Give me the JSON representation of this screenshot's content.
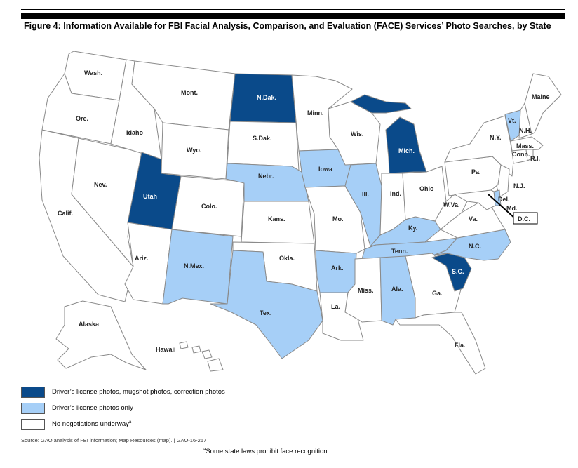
{
  "figure": {
    "title": "Figure 4: Information Available for FBI Facial Analysis, Comparison, and Evaluation (FACE) Services’ Photo Searches, by State",
    "source": "Source: GAO analysis of FBI information; Map Resources (map).  |  GAO-16-267",
    "note_marker": "a",
    "note": "Some state laws prohibit face recognition."
  },
  "colors": {
    "full": "#0a4a8a",
    "license": "#a6cff7",
    "none": "#ffffff"
  },
  "legend": [
    {
      "category": "full",
      "label": "Driver’s license photos, mugshot photos, correction photos",
      "sup": ""
    },
    {
      "category": "license",
      "label": "Driver’s license photos only",
      "sup": ""
    },
    {
      "category": "none",
      "label": "No negotiations underway",
      "sup": "a"
    }
  ],
  "states": {
    "wa": {
      "label": "Wash.",
      "category": "none"
    },
    "or": {
      "label": "Ore.",
      "category": "none"
    },
    "ca": {
      "label": "Calif.",
      "category": "none"
    },
    "nv": {
      "label": "Nev.",
      "category": "none"
    },
    "id": {
      "label": "Idaho",
      "category": "none"
    },
    "mt": {
      "label": "Mont.",
      "category": "none"
    },
    "wy": {
      "label": "Wyo.",
      "category": "none"
    },
    "ut": {
      "label": "Utah",
      "category": "full"
    },
    "az": {
      "label": "Ariz.",
      "category": "none"
    },
    "co": {
      "label": "Colo.",
      "category": "none"
    },
    "nm": {
      "label": "N.Mex.",
      "category": "license"
    },
    "nd": {
      "label": "N.Dak.",
      "category": "full"
    },
    "sd": {
      "label": "S.Dak.",
      "category": "none"
    },
    "ne": {
      "label": "Nebr.",
      "category": "license"
    },
    "ks": {
      "label": "Kans.",
      "category": "none"
    },
    "ok": {
      "label": "Okla.",
      "category": "none"
    },
    "tx": {
      "label": "Tex.",
      "category": "license"
    },
    "mn": {
      "label": "Minn.",
      "category": "none"
    },
    "ia": {
      "label": "Iowa",
      "category": "license"
    },
    "mo": {
      "label": "Mo.",
      "category": "none"
    },
    "ar": {
      "label": "Ark.",
      "category": "license"
    },
    "la": {
      "label": "La.",
      "category": "none"
    },
    "wi": {
      "label": "Wis.",
      "category": "none"
    },
    "il": {
      "label": "Ill.",
      "category": "license"
    },
    "mi": {
      "label": "Mich.",
      "category": "full"
    },
    "in": {
      "label": "Ind.",
      "category": "none"
    },
    "oh": {
      "label": "Ohio",
      "category": "none"
    },
    "ky": {
      "label": "Ky.",
      "category": "license"
    },
    "tn": {
      "label": "Tenn.",
      "category": "license"
    },
    "ms": {
      "label": "Miss.",
      "category": "none"
    },
    "al": {
      "label": "Ala.",
      "category": "license"
    },
    "ga": {
      "label": "Ga.",
      "category": "none"
    },
    "fl": {
      "label": "Fla.",
      "category": "none"
    },
    "sc": {
      "label": "S.C.",
      "category": "full"
    },
    "nc": {
      "label": "N.C.",
      "category": "license"
    },
    "va": {
      "label": "Va.",
      "category": "none"
    },
    "wv": {
      "label": "W.Va.",
      "category": "none"
    },
    "pa": {
      "label": "Pa.",
      "category": "none"
    },
    "ny": {
      "label": "N.Y.",
      "category": "none"
    },
    "vt": {
      "label": "Vt.",
      "category": "license"
    },
    "nh": {
      "label": "N.H.",
      "category": "none"
    },
    "me": {
      "label": "Maine",
      "category": "none"
    },
    "ma": {
      "label": "Mass.",
      "category": "none"
    },
    "ct": {
      "label": "Conn.",
      "category": "none"
    },
    "ri": {
      "label": "R.I.",
      "category": "none"
    },
    "nj": {
      "label": "N.J.",
      "category": "none"
    },
    "de": {
      "label": "Del.",
      "category": "license"
    },
    "md": {
      "label": "Md.",
      "category": "none"
    },
    "dc": {
      "label": "D.C.",
      "category": "none"
    },
    "ak": {
      "label": "Alaska",
      "category": "none"
    },
    "hi": {
      "label": "Hawaii",
      "category": "none"
    }
  }
}
